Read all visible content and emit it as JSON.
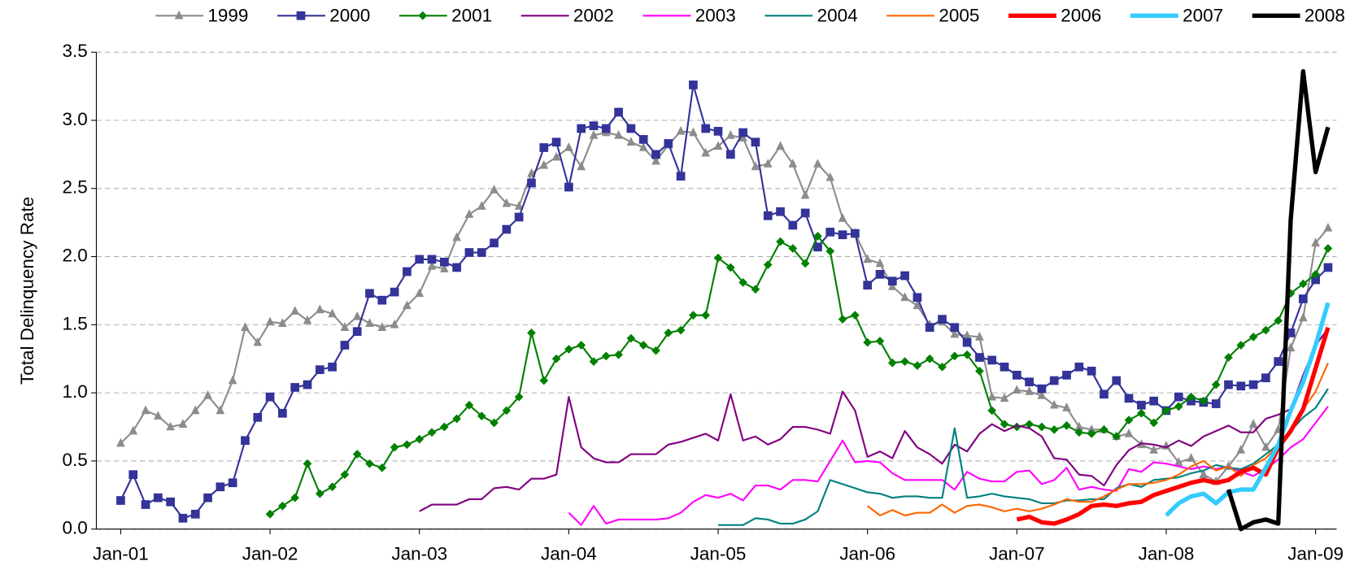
{
  "chart_data": {
    "type": "line",
    "y_label": "Total Delinquency Rate",
    "categories": [
      "Jan-01",
      null,
      null,
      null,
      null,
      null,
      null,
      null,
      null,
      null,
      null,
      null,
      "Jan-02",
      null,
      null,
      null,
      null,
      null,
      null,
      null,
      null,
      null,
      null,
      null,
      "Jan-03",
      null,
      null,
      null,
      null,
      null,
      null,
      null,
      null,
      null,
      null,
      null,
      "Jan-04",
      null,
      null,
      null,
      null,
      null,
      null,
      null,
      null,
      null,
      null,
      null,
      "Jan-05",
      null,
      null,
      null,
      null,
      null,
      null,
      null,
      null,
      null,
      null,
      null,
      "Jan-06",
      null,
      null,
      null,
      null,
      null,
      null,
      null,
      null,
      null,
      null,
      null,
      "Jan-07",
      null,
      null,
      null,
      null,
      null,
      null,
      null,
      null,
      null,
      null,
      null,
      "Jan-08",
      null,
      null,
      null,
      null,
      null,
      null,
      null,
      null,
      null,
      null,
      null,
      "Jan-09",
      null
    ],
    "ylim": [
      0,
      3.5
    ],
    "yticks": [
      {
        "value": 0,
        "label": "0.0"
      },
      0.5,
      {
        "value": 1,
        "label": "1.0"
      },
      1.5,
      {
        "value": 2,
        "label": "2.0"
      },
      2.5,
      {
        "value": 3,
        "label": "3.0"
      },
      3.5
    ],
    "grid": true,
    "legend": "top",
    "series": [
      {
        "name": "1999",
        "color": "#8c8c8c",
        "width": 2,
        "marker": "triangle",
        "values": [
          0.63,
          0.72,
          0.87,
          0.83,
          0.75,
          0.77,
          0.87,
          0.98,
          0.87,
          1.09,
          1.48,
          1.37,
          1.52,
          1.51,
          1.6,
          1.53,
          1.61,
          1.58,
          1.48,
          1.56,
          1.51,
          1.48,
          1.5,
          1.64,
          1.73,
          1.93,
          1.91,
          2.14,
          2.31,
          2.37,
          2.49,
          2.39,
          2.37,
          2.61,
          2.67,
          2.73,
          2.8,
          2.66,
          2.89,
          2.91,
          2.89,
          2.84,
          2.8,
          2.7,
          2.82,
          2.92,
          2.91,
          2.76,
          2.81,
          2.89,
          2.87,
          2.66,
          2.68,
          2.81,
          2.68,
          2.45,
          2.68,
          2.58,
          2.28,
          2.17,
          1.98,
          1.95,
          1.78,
          1.7,
          1.64,
          1.5,
          1.52,
          1.43,
          1.42,
          1.41,
          0.97,
          0.96,
          1.02,
          1.01,
          0.98,
          0.91,
          0.89,
          0.75,
          0.73,
          0.73,
          0.68,
          0.7,
          0.62,
          0.58,
          0.61,
          0.49,
          0.52,
          0.4,
          0.35,
          0.46,
          0.58,
          0.77,
          0.6,
          0.73,
          1.33,
          1.55,
          2.1,
          2.21
        ]
      },
      {
        "name": "2000",
        "color": "#333399",
        "width": 2,
        "marker": "square",
        "values": [
          0.21,
          0.4,
          0.18,
          0.23,
          0.2,
          0.08,
          0.11,
          0.23,
          0.31,
          0.34,
          0.65,
          0.82,
          0.97,
          0.85,
          1.04,
          1.06,
          1.17,
          1.19,
          1.35,
          1.45,
          1.73,
          1.68,
          1.74,
          1.89,
          1.98,
          1.98,
          1.96,
          1.92,
          2.03,
          2.03,
          2.1,
          2.2,
          2.29,
          2.54,
          2.8,
          2.84,
          2.51,
          2.94,
          2.96,
          2.94,
          3.06,
          2.94,
          2.86,
          2.75,
          2.83,
          2.59,
          3.26,
          2.94,
          2.92,
          2.75,
          2.91,
          2.84,
          2.3,
          2.33,
          2.23,
          2.32,
          2.07,
          2.18,
          2.16,
          2.17,
          1.79,
          1.87,
          1.82,
          1.86,
          1.7,
          1.48,
          1.54,
          1.48,
          1.37,
          1.26,
          1.24,
          1.19,
          1.13,
          1.08,
          1.03,
          1.09,
          1.13,
          1.19,
          1.16,
          0.99,
          1.09,
          0.96,
          0.91,
          0.94,
          0.87,
          0.97,
          0.94,
          0.93,
          0.92,
          1.06,
          1.05,
          1.06,
          1.11,
          1.23,
          1.44,
          1.69,
          1.83,
          1.92
        ]
      },
      {
        "name": "2001",
        "color": "#008000",
        "width": 2,
        "marker": "diamond",
        "values": [
          null,
          null,
          null,
          null,
          null,
          null,
          null,
          null,
          null,
          null,
          null,
          null,
          0.11,
          0.17,
          0.23,
          0.48,
          0.26,
          0.31,
          0.4,
          0.55,
          0.48,
          0.45,
          0.6,
          0.62,
          0.66,
          0.71,
          0.75,
          0.81,
          0.91,
          0.83,
          0.78,
          0.87,
          0.97,
          1.44,
          1.09,
          1.25,
          1.32,
          1.35,
          1.23,
          1.27,
          1.28,
          1.4,
          1.35,
          1.31,
          1.44,
          1.46,
          1.57,
          1.57,
          1.99,
          1.92,
          1.81,
          1.76,
          1.94,
          2.11,
          2.06,
          1.95,
          2.15,
          2.04,
          1.54,
          1.57,
          1.37,
          1.38,
          1.22,
          1.23,
          1.2,
          1.25,
          1.19,
          1.27,
          1.28,
          1.16,
          0.87,
          0.77,
          0.75,
          0.77,
          0.75,
          0.73,
          0.76,
          0.71,
          0.7,
          0.73,
          0.68,
          0.8,
          0.85,
          0.78,
          0.87,
          0.9,
          0.97,
          0.94,
          1.06,
          1.26,
          1.35,
          1.41,
          1.46,
          1.53,
          1.73,
          1.8,
          1.87,
          2.06
        ]
      },
      {
        "name": "2002",
        "color": "#800080",
        "width": 2,
        "values": [
          null,
          null,
          null,
          null,
          null,
          null,
          null,
          null,
          null,
          null,
          null,
          null,
          null,
          null,
          null,
          null,
          null,
          null,
          null,
          null,
          null,
          null,
          null,
          null,
          0.13,
          0.18,
          0.18,
          0.18,
          0.22,
          0.22,
          0.3,
          0.31,
          0.29,
          0.37,
          0.37,
          0.4,
          0.97,
          0.6,
          0.52,
          0.49,
          0.49,
          0.55,
          0.55,
          0.55,
          0.62,
          0.64,
          0.67,
          0.7,
          0.65,
          0.99,
          0.65,
          0.68,
          0.62,
          0.66,
          0.75,
          0.75,
          0.73,
          0.7,
          1.01,
          0.87,
          0.53,
          0.57,
          0.52,
          0.72,
          0.6,
          0.55,
          0.48,
          0.62,
          0.57,
          0.7,
          0.77,
          0.72,
          0.76,
          0.74,
          0.68,
          0.52,
          0.51,
          0.4,
          0.39,
          0.32,
          0.47,
          0.58,
          0.63,
          0.62,
          0.6,
          0.65,
          0.61,
          0.68,
          0.72,
          0.76,
          0.71,
          0.71,
          0.81,
          0.84,
          0.88,
          1.13,
          1.35,
          1.47
        ]
      },
      {
        "name": "2003",
        "color": "#ff00ff",
        "width": 2,
        "values": [
          null,
          null,
          null,
          null,
          null,
          null,
          null,
          null,
          null,
          null,
          null,
          null,
          null,
          null,
          null,
          null,
          null,
          null,
          null,
          null,
          null,
          null,
          null,
          null,
          null,
          null,
          null,
          null,
          null,
          null,
          null,
          null,
          null,
          null,
          null,
          null,
          0.12,
          0.03,
          0.17,
          0.04,
          0.07,
          0.07,
          0.07,
          0.07,
          0.08,
          0.12,
          0.2,
          0.25,
          0.23,
          0.26,
          0.21,
          0.32,
          0.32,
          0.29,
          0.36,
          0.36,
          0.35,
          0.5,
          0.65,
          0.49,
          0.5,
          0.49,
          0.41,
          0.36,
          0.36,
          0.36,
          0.36,
          0.29,
          0.42,
          0.37,
          0.35,
          0.35,
          0.42,
          0.43,
          0.33,
          0.36,
          0.45,
          0.29,
          0.31,
          0.29,
          0.28,
          0.44,
          0.42,
          0.49,
          0.48,
          0.46,
          0.44,
          0.46,
          0.44,
          0.46,
          0.42,
          0.39,
          0.44,
          0.51,
          0.6,
          0.66,
          0.78,
          0.9
        ]
      },
      {
        "name": "2004",
        "color": "#008080",
        "width": 2,
        "values": [
          null,
          null,
          null,
          null,
          null,
          null,
          null,
          null,
          null,
          null,
          null,
          null,
          null,
          null,
          null,
          null,
          null,
          null,
          null,
          null,
          null,
          null,
          null,
          null,
          null,
          null,
          null,
          null,
          null,
          null,
          null,
          null,
          null,
          null,
          null,
          null,
          null,
          null,
          null,
          null,
          null,
          null,
          null,
          null,
          null,
          null,
          null,
          null,
          0.03,
          0.03,
          0.03,
          0.08,
          0.07,
          0.04,
          0.04,
          0.07,
          0.13,
          0.36,
          0.33,
          0.3,
          0.27,
          0.26,
          0.23,
          0.24,
          0.24,
          0.23,
          0.23,
          0.74,
          0.23,
          0.24,
          0.26,
          0.24,
          0.23,
          0.22,
          0.19,
          0.19,
          0.21,
          0.21,
          0.22,
          0.22,
          0.3,
          0.33,
          0.31,
          0.36,
          0.37,
          0.38,
          0.41,
          0.43,
          0.47,
          0.45,
          0.44,
          0.48,
          0.55,
          0.62,
          0.72,
          0.82,
          0.89,
          1.03
        ]
      },
      {
        "name": "2005",
        "color": "#ff6600",
        "width": 2,
        "values": [
          null,
          null,
          null,
          null,
          null,
          null,
          null,
          null,
          null,
          null,
          null,
          null,
          null,
          null,
          null,
          null,
          null,
          null,
          null,
          null,
          null,
          null,
          null,
          null,
          null,
          null,
          null,
          null,
          null,
          null,
          null,
          null,
          null,
          null,
          null,
          null,
          null,
          null,
          null,
          null,
          null,
          null,
          null,
          null,
          null,
          null,
          null,
          null,
          null,
          null,
          null,
          null,
          null,
          null,
          null,
          null,
          null,
          null,
          null,
          null,
          0.17,
          0.1,
          0.14,
          0.1,
          0.12,
          0.12,
          0.18,
          0.12,
          0.17,
          0.18,
          0.16,
          0.13,
          0.15,
          0.13,
          0.15,
          0.18,
          0.22,
          0.2,
          0.2,
          0.24,
          0.29,
          0.33,
          0.33,
          0.34,
          0.36,
          0.4,
          0.46,
          0.5,
          0.43,
          0.46,
          0.39,
          0.47,
          0.52,
          0.62,
          0.73,
          0.88,
          1.01,
          1.22
        ]
      },
      {
        "name": "2006",
        "color": "#ff0000",
        "width": 5,
        "values": [
          null,
          null,
          null,
          null,
          null,
          null,
          null,
          null,
          null,
          null,
          null,
          null,
          null,
          null,
          null,
          null,
          null,
          null,
          null,
          null,
          null,
          null,
          null,
          null,
          null,
          null,
          null,
          null,
          null,
          null,
          null,
          null,
          null,
          null,
          null,
          null,
          null,
          null,
          null,
          null,
          null,
          null,
          null,
          null,
          null,
          null,
          null,
          null,
          null,
          null,
          null,
          null,
          null,
          null,
          null,
          null,
          null,
          null,
          null,
          null,
          null,
          null,
          null,
          null,
          null,
          null,
          null,
          null,
          null,
          null,
          null,
          null,
          0.07,
          0.09,
          0.05,
          0.04,
          0.07,
          0.11,
          0.17,
          0.18,
          0.17,
          0.19,
          0.2,
          0.25,
          0.28,
          0.31,
          0.34,
          0.36,
          0.34,
          0.36,
          0.42,
          0.45,
          0.4,
          0.6,
          0.72,
          0.88,
          1.18,
          1.48
        ]
      },
      {
        "name": "2007",
        "color": "#33ccff",
        "width": 5,
        "values": [
          null,
          null,
          null,
          null,
          null,
          null,
          null,
          null,
          null,
          null,
          null,
          null,
          null,
          null,
          null,
          null,
          null,
          null,
          null,
          null,
          null,
          null,
          null,
          null,
          null,
          null,
          null,
          null,
          null,
          null,
          null,
          null,
          null,
          null,
          null,
          null,
          null,
          null,
          null,
          null,
          null,
          null,
          null,
          null,
          null,
          null,
          null,
          null,
          null,
          null,
          null,
          null,
          null,
          null,
          null,
          null,
          null,
          null,
          null,
          null,
          null,
          null,
          null,
          null,
          null,
          null,
          null,
          null,
          null,
          null,
          null,
          null,
          null,
          null,
          null,
          null,
          null,
          null,
          null,
          null,
          null,
          null,
          null,
          null,
          0.1,
          0.19,
          0.24,
          0.26,
          0.19,
          0.27,
          0.29,
          0.29,
          0.45,
          0.62,
          0.87,
          1.08,
          1.35,
          1.66
        ]
      },
      {
        "name": "2008",
        "color": "#000000",
        "width": 5,
        "values": [
          null,
          null,
          null,
          null,
          null,
          null,
          null,
          null,
          null,
          null,
          null,
          null,
          null,
          null,
          null,
          null,
          null,
          null,
          null,
          null,
          null,
          null,
          null,
          null,
          null,
          null,
          null,
          null,
          null,
          null,
          null,
          null,
          null,
          null,
          null,
          null,
          null,
          null,
          null,
          null,
          null,
          null,
          null,
          null,
          null,
          null,
          null,
          null,
          null,
          null,
          null,
          null,
          null,
          null,
          null,
          null,
          null,
          null,
          null,
          null,
          null,
          null,
          null,
          null,
          null,
          null,
          null,
          null,
          null,
          null,
          null,
          null,
          null,
          null,
          null,
          null,
          null,
          null,
          null,
          null,
          null,
          null,
          null,
          null,
          null,
          null,
          null,
          null,
          null,
          0.29,
          0.0,
          0.05,
          0.07,
          0.04,
          2.27,
          3.36,
          2.62,
          2.95
        ]
      }
    ]
  }
}
